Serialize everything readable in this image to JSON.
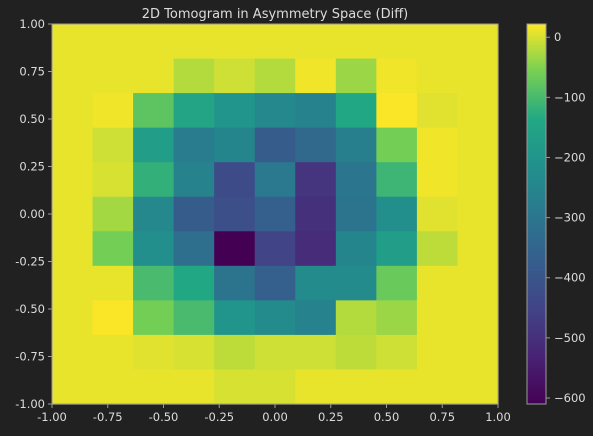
{
  "chart_data": {
    "type": "heatmap",
    "title": "2D Tomogram in Asymmetry Space (Diff)",
    "xlabel": "",
    "ylabel": "",
    "xlim": [
      -1.0,
      1.0
    ],
    "ylim": [
      -1.0,
      1.0
    ],
    "x_ticks": [
      "-1.00",
      "-0.75",
      "-0.50",
      "-0.25",
      "0.00",
      "0.25",
      "0.50",
      "0.75",
      "1.00"
    ],
    "y_ticks": [
      "1.00",
      "0.75",
      "0.50",
      "0.25",
      "0.00",
      "-0.25",
      "-0.50",
      "-0.75",
      "-1.00"
    ],
    "grid": false,
    "colormap": "viridis",
    "clim": [
      -610,
      22
    ],
    "colorbar_ticks": [
      "0",
      "−100",
      "−200",
      "−300",
      "−400",
      "−500",
      "−600"
    ],
    "colorbar_tick_values": [
      0,
      -100,
      -200,
      -300,
      -400,
      -500,
      -600
    ],
    "rows_top_to_bottom": [
      [
        10,
        10,
        10,
        10,
        10,
        10,
        10,
        10,
        10,
        10,
        10
      ],
      [
        10,
        10,
        10,
        -20,
        -5,
        -20,
        15,
        -35,
        15,
        10,
        10
      ],
      [
        10,
        15,
        -80,
        -150,
        -200,
        -240,
        -260,
        -140,
        20,
        5,
        10
      ],
      [
        10,
        -5,
        -170,
        -280,
        -250,
        -380,
        -340,
        -270,
        -60,
        15,
        10
      ],
      [
        10,
        0,
        -120,
        -260,
        -430,
        -290,
        -490,
        -300,
        -110,
        15,
        10
      ],
      [
        10,
        -30,
        -240,
        -380,
        -420,
        -370,
        -500,
        -310,
        -220,
        5,
        10
      ],
      [
        10,
        -60,
        -220,
        -320,
        -610,
        -450,
        -510,
        -250,
        -170,
        -15,
        10
      ],
      [
        10,
        10,
        -100,
        -140,
        -310,
        -370,
        -230,
        -230,
        -70,
        10,
        10
      ],
      [
        10,
        20,
        -60,
        -100,
        -200,
        -230,
        -260,
        -20,
        -35,
        10,
        10
      ],
      [
        10,
        10,
        5,
        0,
        -15,
        -5,
        -5,
        -15,
        -5,
        10,
        10
      ],
      [
        10,
        10,
        10,
        10,
        0,
        0,
        10,
        10,
        10,
        10,
        10
      ]
    ]
  }
}
